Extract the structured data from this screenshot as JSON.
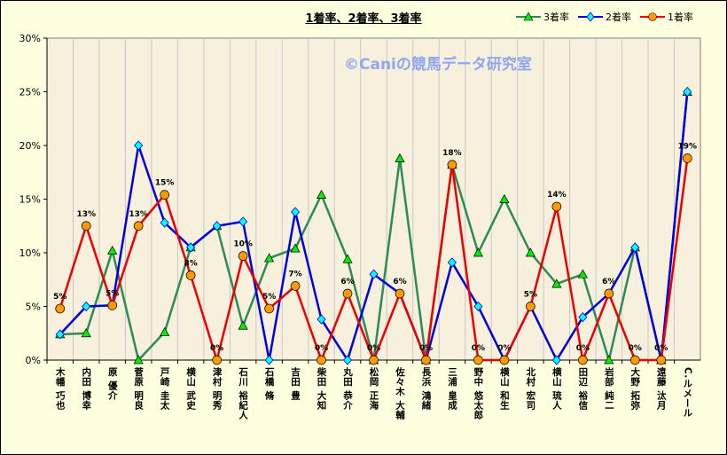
{
  "watermark": "©Caniの競馬データ研究室",
  "chart_data": {
    "type": "line",
    "title": "1着率、2着率、3着率",
    "xlabel": "",
    "ylabel": "",
    "ylim": [
      0,
      30
    ],
    "yticks": [
      "0%",
      "5%",
      "10%",
      "15%",
      "20%",
      "25%",
      "30%"
    ],
    "grid": "vertical",
    "legend_position": "top-right",
    "categories": [
      "木幡 巧也",
      "内田 博幸",
      "原 優介",
      "菅原 明良",
      "戸崎 圭太",
      "横山 武史",
      "津村 明秀",
      "石川 裕紀人",
      "石橋 脩",
      "吉田 豊",
      "柴田 大知",
      "丸田 恭介",
      "松岡 正海",
      "佐々木 大輔",
      "長浜 鴻緒",
      "三浦 皇成",
      "野中 悠太郎",
      "横山 和生",
      "北村 宏司",
      "横山 琉人",
      "田辺 裕信",
      "岩部 純二",
      "大野 拓弥",
      "遠藤 汰月",
      "C.ルメール"
    ],
    "series": [
      {
        "name": "3着率",
        "color": "#2e8b57",
        "marker": "triangle",
        "marker_color": "#00ee00",
        "values": [
          2.4,
          2.5,
          10.2,
          0,
          2.6,
          10.5,
          12.5,
          3.2,
          9.5,
          10.4,
          15.4,
          9.4,
          0,
          18.8,
          0,
          18.2,
          10.0,
          15.0,
          10.0,
          7.1,
          8.0,
          0,
          10.5,
          0,
          25.0
        ]
      },
      {
        "name": "2着率",
        "color": "#0000dd",
        "marker": "diamond",
        "marker_color": "#00ffff",
        "values": [
          2.4,
          5.0,
          5.1,
          20.0,
          12.8,
          10.5,
          12.5,
          12.9,
          0,
          13.8,
          3.8,
          0,
          8.0,
          6.2,
          0,
          9.1,
          5.0,
          0,
          5.0,
          0,
          4.0,
          6.2,
          10.5,
          0,
          25.0
        ]
      },
      {
        "name": "1着率",
        "color": "#ee0000",
        "marker": "circle",
        "marker_color": "#ff9900",
        "values": [
          4.8,
          12.5,
          5.1,
          12.5,
          15.4,
          7.9,
          0,
          9.7,
          4.8,
          6.9,
          0,
          6.2,
          0,
          6.2,
          0,
          18.2,
          0,
          0,
          5.0,
          14.3,
          0,
          6.2,
          0,
          0,
          18.8
        ],
        "data_labels": [
          "5%",
          "13%",
          "5%",
          "13%",
          "15%",
          "8%",
          "0%",
          "10%",
          "5%",
          "7%",
          "0%",
          "6%",
          "0%",
          "6%",
          "0%",
          "18%",
          "0%",
          "0%",
          "5%",
          "14%",
          "0%",
          "6%",
          "0%",
          "0%",
          "19%"
        ]
      }
    ]
  }
}
